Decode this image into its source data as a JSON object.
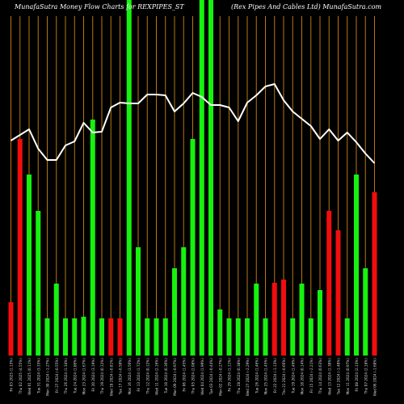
{
  "header": {
    "left": "MunafaSutra  Money Flow  Charts for REXPIPES_ST",
    "right": "(Rex Pipes And Cables Ltd) MunafaSutra.com"
  },
  "colors": {
    "background": "#000000",
    "grid": "#b8770f",
    "green": "#16f20e",
    "red": "#f20d0d",
    "line": "#ffffff",
    "label": "#dddddd"
  },
  "chart_data": {
    "type": "bar",
    "title": "MunafaSutra  Money Flow  Charts for REXPIPES_ST",
    "subtitle": "(Rex Pipes And Cables Ltd) MunafaSutra.com",
    "categories": [
      "Fri 03 2025 (1.13%)",
      "Thu 02 2025 (4.55%)",
      "Wed 01 2025 (0.11%)",
      "Tue 31 2024 (3.33%)",
      "Mon 30 2024 (-1.27%)",
      "Fri 27 2024 (-0.55%)",
      "Thu 26 2024 (1.34%)",
      "Tue 24 2024 (1.86%)",
      "Mon 23 2024 (1.67%)",
      "Fri 20 2024 (3.19%)",
      "Thu 19 2024 (0.12%)",
      "Wed 18 2024 (-0.81%)",
      "Tue 17 2024 (-0.58%)",
      "Mon 16 2024 (3.56%)",
      "Fri 13 2024 (1.72%)",
      "Thu 12 2024 (0.12%)",
      "Wed 11 2024 (2.16%)",
      "Tue 10 2024 (0.36%)",
      "Mon 09 2024 (-0.97%)",
      "Fri 06 2024 (1.45%)",
      "Thu 05 2024 (2.08%)",
      "Wed 04 2024 (1.99%)",
      "Tue 03 2024 (-0.44%)",
      "Mon 02 2024 (-0.27%)",
      "Fri 29 2024 (1.11%)",
      "Thu 28 2024 (0.38%)",
      "Wed 27 2024 (-2.29%)",
      "Tue 26 2024 (1.46%)",
      "Mon 25 2024 (1.45%)",
      "Fri 22 2024 (-1.13%)",
      "Thu 21 2024 (-0.66%)",
      "Tue 19 2024 (1.49%)",
      "Mon 18 2024 (0.14%)",
      "Fri 15 2024 (-2.21%)",
      "Thu 14 2024 (0.63%)",
      "Wed 13 2024 (1.38%)",
      "Tue 12 2024 (-1.48%)",
      "Mon 11 2024 (0.97%)",
      "Fri 08 2024 (2.13%)",
      "Thu 07 2024 (2.18%)",
      "Wed 06 2024 (-1.68%)"
    ],
    "series": [
      {
        "type": "bar",
        "colors": [
          "red",
          "red",
          "green",
          "green",
          "green",
          "green",
          "green",
          "green",
          "green",
          "green",
          "green",
          "red",
          "red",
          "green",
          "green",
          "green",
          "green",
          "green",
          "green",
          "green",
          "green",
          "green",
          "green",
          "green",
          "green",
          "green",
          "green",
          "green",
          "green",
          "red",
          "red",
          "green",
          "green",
          "green",
          "green",
          "red",
          "red",
          "green",
          "green",
          "green",
          "red"
        ],
        "values": [
          66,
          268,
          224,
          179,
          46,
          89,
          46,
          46,
          48,
          292,
          46,
          46,
          46,
          440,
          134,
          46,
          46,
          46,
          108,
          134,
          268,
          440,
          440,
          57,
          46,
          46,
          46,
          89,
          46,
          90,
          94,
          46,
          89,
          46,
          81,
          179,
          155,
          46,
          224,
          108,
          202
        ],
        "clipped_above_plot": [
          false,
          false,
          false,
          false,
          false,
          false,
          false,
          false,
          false,
          false,
          false,
          false,
          false,
          true,
          false,
          false,
          false,
          false,
          false,
          false,
          false,
          true,
          true,
          false,
          false,
          false,
          false,
          false,
          false,
          false,
          false,
          false,
          false,
          false,
          false,
          false,
          false,
          false,
          false,
          false,
          false
        ]
      },
      {
        "type": "line",
        "values": [
          266,
          273,
          280,
          256,
          242,
          242,
          260,
          265,
          288,
          276,
          277,
          307,
          313,
          312,
          312,
          323,
          323,
          322,
          302,
          312,
          325,
          320,
          310,
          310,
          307,
          290,
          313,
          322,
          333,
          336,
          316,
          302,
          293,
          284,
          268,
          280,
          266,
          276,
          264,
          250,
          238
        ]
      }
    ],
    "ylim": [
      0,
      440
    ],
    "grid": true,
    "xlabel": "",
    "ylabel": ""
  }
}
